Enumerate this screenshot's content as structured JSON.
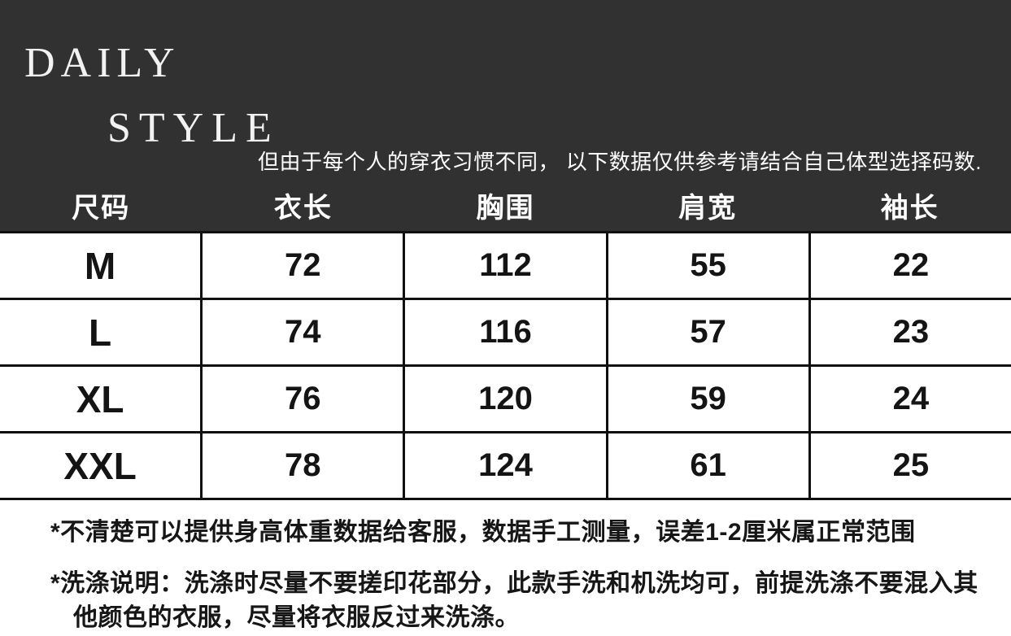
{
  "brand": {
    "line1": "DAILY",
    "line2": "STYLE"
  },
  "notice": "但由于每个人的穿衣习惯不同， 以下数据仅供参考请结合自己体型选择码数.",
  "size_table": {
    "headers": [
      "尺码",
      "衣长",
      "胸围",
      "肩宽",
      "袖长"
    ],
    "rows": [
      {
        "size": "M",
        "length": "72",
        "bust": "112",
        "shoulder": "55",
        "sleeve": "22"
      },
      {
        "size": "L",
        "length": "74",
        "bust": "116",
        "shoulder": "57",
        "sleeve": "23"
      },
      {
        "size": "XL",
        "length": "76",
        "bust": "120",
        "shoulder": "59",
        "sleeve": "24"
      },
      {
        "size": "XXL",
        "length": "78",
        "bust": "124",
        "shoulder": "61",
        "sleeve": "25"
      }
    ]
  },
  "footnotes": [
    "*不清楚可以提供身高体重数据给客服，数据手工测量，误差1-2厘米属正常范围",
    "*洗涤说明：洗涤时尽量不要搓印花部分，此款手洗和机洗均可，前提洗涤不要混入其他颜色的衣服，尽量将衣服反过来洗涤。"
  ],
  "colors": {
    "band_background": "#313131",
    "band_text": "#ffffff",
    "table_border": "#101010",
    "body_text": "#141414"
  }
}
